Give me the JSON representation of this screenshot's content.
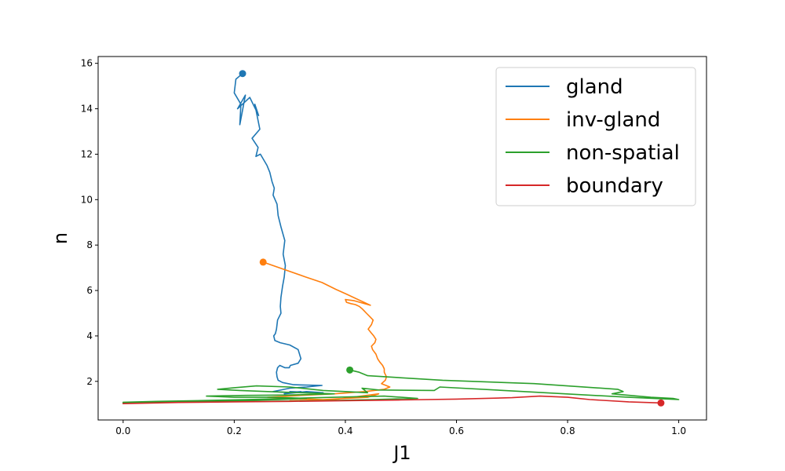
{
  "chart_data": {
    "type": "line",
    "title": "",
    "xlabel": "J1",
    "ylabel": "n",
    "xlim": [
      -0.045,
      1.05
    ],
    "ylim": [
      0.3,
      16.3
    ],
    "xticks": [
      0.0,
      0.2,
      0.4,
      0.6,
      0.8,
      1.0
    ],
    "xtick_labels": [
      "0.0",
      "0.2",
      "0.4",
      "0.6",
      "0.8",
      "1.0"
    ],
    "yticks": [
      2,
      4,
      6,
      8,
      10,
      12,
      14,
      16
    ],
    "ytick_labels": [
      "2",
      "4",
      "6",
      "8",
      "10",
      "12",
      "14",
      "16"
    ],
    "grid": false,
    "legend_position": "upper right",
    "series": [
      {
        "name": "gland",
        "color": "#1f77b4",
        "x": [
          0.215,
          0.203,
          0.2,
          0.212,
          0.21,
          0.22,
          0.206,
          0.228,
          0.244,
          0.237,
          0.246,
          0.232,
          0.243,
          0.239,
          0.247,
          0.259,
          0.264,
          0.268,
          0.272,
          0.27,
          0.277,
          0.279,
          0.284,
          0.291,
          0.288,
          0.292,
          0.29,
          0.287,
          0.284,
          0.283,
          0.284,
          0.278,
          0.277,
          0.276,
          0.274,
          0.271,
          0.273,
          0.283,
          0.292,
          0.3,
          0.315,
          0.32,
          0.315,
          0.301,
          0.299,
          0.291,
          0.282,
          0.278,
          0.276,
          0.277,
          0.279,
          0.287,
          0.307,
          0.358,
          0.33,
          0.3,
          0.28,
          0.27,
          0.3,
          0.32,
          0.29,
          0.33,
          0.36,
          0.3
        ],
        "y": [
          15.55,
          15.3,
          14.7,
          14.2,
          13.3,
          14.6,
          14.0,
          14.5,
          13.7,
          14.2,
          13.1,
          12.7,
          12.3,
          11.9,
          12.0,
          11.5,
          11.2,
          10.8,
          10.5,
          10.2,
          9.8,
          9.3,
          8.8,
          8.2,
          7.6,
          7.1,
          6.6,
          6.2,
          5.7,
          5.3,
          5.0,
          4.7,
          4.5,
          4.3,
          4.1,
          4.0,
          3.8,
          3.7,
          3.65,
          3.6,
          3.4,
          3.0,
          2.8,
          2.7,
          2.6,
          2.6,
          2.7,
          2.6,
          2.4,
          2.2,
          2.05,
          1.95,
          1.85,
          1.82,
          1.75,
          1.7,
          1.6,
          1.55,
          1.5,
          1.55,
          1.45,
          1.55,
          1.5,
          1.55
        ]
      },
      {
        "name": "inv-gland",
        "color": "#ff7f0e",
        "x": [
          0.252,
          0.328,
          0.358,
          0.383,
          0.401,
          0.445,
          0.416,
          0.4,
          0.402,
          0.41,
          0.418,
          0.425,
          0.43,
          0.434,
          0.438,
          0.444,
          0.45,
          0.447,
          0.441,
          0.446,
          0.451,
          0.455,
          0.453,
          0.447,
          0.449,
          0.455,
          0.458,
          0.462,
          0.467,
          0.47,
          0.47,
          0.474,
          0.472,
          0.465,
          0.48,
          0.47,
          0.435,
          0.38,
          0.32,
          0.26,
          0.3,
          0.36,
          0.44,
          0.46,
          0.38,
          0.3
        ],
        "y": [
          7.25,
          6.6,
          6.35,
          6.05,
          5.85,
          5.35,
          5.55,
          5.6,
          5.48,
          5.42,
          5.38,
          5.3,
          5.2,
          5.1,
          5.0,
          4.85,
          4.7,
          4.5,
          4.3,
          4.15,
          4.0,
          3.85,
          3.7,
          3.55,
          3.4,
          3.2,
          3.0,
          2.85,
          2.7,
          2.55,
          2.4,
          2.2,
          2.05,
          1.9,
          1.75,
          1.65,
          1.55,
          1.45,
          1.38,
          1.3,
          1.25,
          1.2,
          1.3,
          1.45,
          1.2,
          1.15
        ]
      },
      {
        "name": "non-spatial",
        "color": "#2ca02c",
        "x": [
          0.408,
          0.425,
          0.44,
          0.575,
          0.74,
          0.89,
          0.9,
          0.88,
          0.95,
          0.99,
          1.0,
          0.91,
          0.76,
          0.57,
          0.56,
          0.46,
          0.43,
          0.44,
          0.4,
          0.36,
          0.3,
          0.24,
          0.2,
          0.17,
          0.21,
          0.26,
          0.32,
          0.38,
          0.3,
          0.22,
          0.15,
          0.2,
          0.27,
          0.33,
          0.28,
          0.2,
          0.12,
          0.05,
          0.0,
          0.06,
          0.13,
          0.22,
          0.3,
          0.38,
          0.47,
          0.53,
          0.45,
          0.36,
          0.25,
          0.14,
          0.04,
          0.0
        ],
        "y": [
          2.5,
          2.4,
          2.25,
          2.05,
          1.9,
          1.65,
          1.55,
          1.45,
          1.3,
          1.25,
          1.2,
          1.3,
          1.5,
          1.75,
          1.6,
          1.62,
          1.7,
          1.5,
          1.55,
          1.6,
          1.75,
          1.8,
          1.72,
          1.65,
          1.6,
          1.55,
          1.5,
          1.45,
          1.4,
          1.38,
          1.35,
          1.3,
          1.3,
          1.25,
          1.2,
          1.15,
          1.12,
          1.1,
          1.08,
          1.12,
          1.15,
          1.2,
          1.25,
          1.3,
          1.35,
          1.25,
          1.2,
          1.15,
          1.12,
          1.1,
          1.06,
          1.05
        ]
      },
      {
        "name": "boundary",
        "color": "#d62728",
        "x": [
          0.968,
          0.91,
          0.84,
          0.8,
          0.75,
          0.7,
          0.6,
          0.5,
          0.4,
          0.3,
          0.2,
          0.1,
          0.0
        ],
        "y": [
          1.05,
          1.1,
          1.2,
          1.3,
          1.35,
          1.28,
          1.22,
          1.18,
          1.15,
          1.12,
          1.1,
          1.07,
          1.02
        ]
      }
    ]
  }
}
